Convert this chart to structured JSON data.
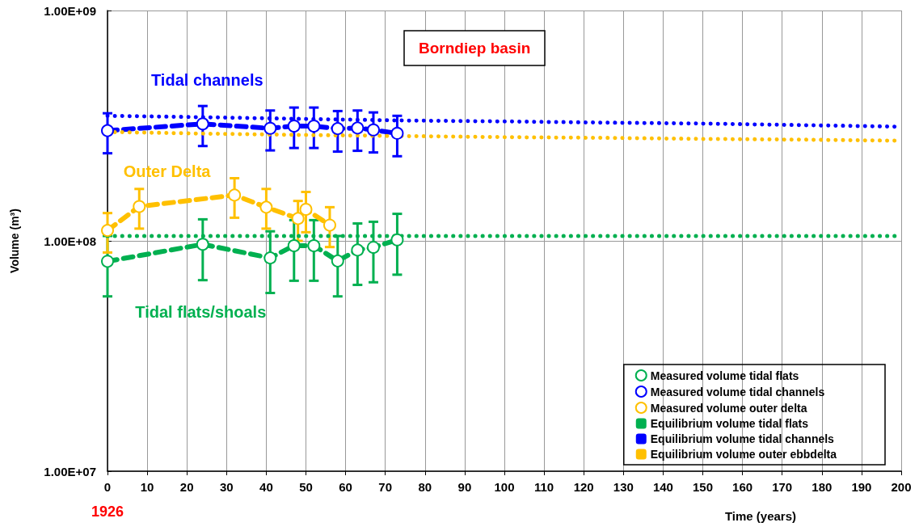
{
  "chart_data": {
    "type": "line",
    "title": "Borndiep basin",
    "xlabel": "Time (years)",
    "ylabel": "Volume (m³)",
    "annotations": [
      "Tidal channels",
      "Outer Delta",
      "Tidal flats/shoals",
      "1926"
    ],
    "series": [
      {
        "name": "Measured volume tidal flats",
        "color": "#00b050",
        "line_style": "dashed",
        "marker": "circle",
        "x": [
          0,
          24,
          41,
          47,
          52,
          58,
          63,
          67,
          73
        ],
        "values": [
          81500000,
          96600000,
          84300000,
          95300000,
          95300000,
          81800000,
          91200000,
          93700000,
          101000000
        ],
        "errors": [
          [
            57400000,
            105000000
          ],
          [
            67500000,
            124000000
          ],
          [
            59400000,
            110000000
          ],
          [
            67100000,
            123000000
          ],
          [
            67100000,
            123000000
          ],
          [
            57400000,
            105000000
          ],
          [
            64400000,
            119000000
          ],
          [
            66100000,
            121000000
          ],
          [
            71300000,
            131000000
          ]
        ]
      },
      {
        "name": "Measured volume tidal channels",
        "color": "#0000ff",
        "line_style": "dashed",
        "marker": "circle",
        "x": [
          0,
          24,
          41,
          47,
          52,
          58,
          63,
          67,
          73
        ],
        "values": [
          301000000,
          322000000,
          308000000,
          315000000,
          315000000,
          307000000,
          309000000,
          303000000,
          293000000
        ],
        "errors": [
          [
            240000000,
            358000000
          ],
          [
            258000000,
            385000000
          ],
          [
            247000000,
            368000000
          ],
          [
            253000000,
            379000000
          ],
          [
            253000000,
            379000000
          ],
          [
            244000000,
            366000000
          ],
          [
            246000000,
            368000000
          ],
          [
            242000000,
            361000000
          ],
          [
            233000000,
            349000000
          ]
        ]
      },
      {
        "name": "Measured volume outer delta",
        "color": "#ffc000",
        "line_style": "dashed",
        "marker": "circle",
        "x": [
          0,
          8,
          32,
          40,
          48,
          50,
          56
        ],
        "values": [
          111000000,
          141000000,
          158000000,
          140000000,
          125000000,
          137000000,
          117000000
        ],
        "errors": [
          [
            89000000,
            132000000
          ],
          [
            113000000,
            168000000
          ],
          [
            126000000,
            187000000
          ],
          [
            113000000,
            168000000
          ],
          [
            100000000,
            149000000
          ],
          [
            109000000,
            163000000
          ],
          [
            94000000,
            140000000
          ]
        ]
      },
      {
        "name": "Equilibrium volume tidal flats",
        "color": "#00b050",
        "line_style": "dotted",
        "marker": "none",
        "x": [
          0,
          200
        ],
        "values": [
          105000000,
          105000000
        ]
      },
      {
        "name": "Equilibrium volume tidal channels",
        "color": "#0000ff",
        "line_style": "dotted",
        "marker": "none",
        "x": [
          0,
          25,
          50,
          75,
          100,
          125,
          150,
          175,
          200
        ],
        "values": [
          349000000,
          344000000,
          338000000,
          333000000,
          330000000,
          326000000,
          323000000,
          318000000,
          313000000
        ]
      },
      {
        "name": "Equilibrium volume outer ebbdelta",
        "color": "#ffc000",
        "line_style": "dotted",
        "marker": "none",
        "x": [
          0,
          25,
          50,
          75,
          100,
          125,
          150,
          175,
          200
        ],
        "values": [
          297000000,
          292000000,
          288000000,
          285000000,
          282000000,
          280000000,
          277000000,
          275000000,
          272000000
        ]
      }
    ],
    "xlim": [
      0,
      200
    ],
    "xticks": [
      0,
      10,
      20,
      30,
      40,
      50,
      60,
      70,
      80,
      90,
      100,
      110,
      120,
      130,
      140,
      150,
      160,
      170,
      180,
      190,
      200
    ],
    "ylim": [
      10000000,
      1000000000
    ],
    "yticks": [
      {
        "value": 10000000,
        "label": "1.00E+07"
      },
      {
        "value": 100000000,
        "label": "1.00E+08"
      },
      {
        "value": 1000000000,
        "label": "1.00E+09"
      }
    ],
    "log": "y",
    "grid": true,
    "legend": "bottom right"
  }
}
